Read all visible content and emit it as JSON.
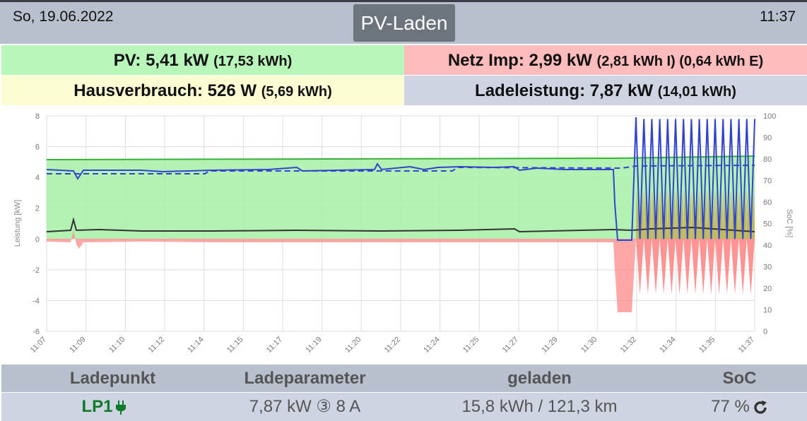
{
  "header": {
    "date": "So, 19.06.2022",
    "mode": "PV-Laden",
    "time": "11:37"
  },
  "tiles": {
    "pv": {
      "label": "PV: 5,41 kW",
      "sub": "(17,53 kWh)"
    },
    "grid": {
      "label": "Netz Imp: 2,99 kW",
      "sub": "(2,81 kWh I) (0,64 kWh E)"
    },
    "house": {
      "label": "Hausverbrauch: 526 W",
      "sub": "(5,69 kWh)"
    },
    "charge": {
      "label": "Ladeleistung: 7,87 kW",
      "sub": "(14,01 kWh)"
    }
  },
  "chart_data": {
    "type": "line",
    "ylabel": "Leistung [kW]",
    "y2label": "SoC [%]",
    "ylim": [
      -6,
      8
    ],
    "y2lim": [
      0,
      100
    ],
    "yticks": [
      "8",
      "6",
      "4",
      "2",
      "0",
      "-2",
      "-4",
      "-6"
    ],
    "y2ticks": [
      "100",
      "90",
      "80",
      "70",
      "60",
      "50",
      "40",
      "30",
      "20",
      "10",
      "0"
    ],
    "xticks": [
      "11:07",
      "11:09",
      "11:10",
      "11:12",
      "11:14",
      "11:15",
      "11:17",
      "11:19",
      "11:20",
      "11:22",
      "11:24",
      "11:25",
      "11:27",
      "11:29",
      "11:30",
      "11:32",
      "11:34",
      "11:35",
      "11:37"
    ],
    "grid": true,
    "series": [
      {
        "color": "#3344cc",
        "points": [
          [
            0,
            4.5
          ],
          [
            2.1,
            4.4
          ],
          [
            2.3,
            4.0
          ],
          [
            2.6,
            4.5
          ],
          [
            7,
            4.5
          ],
          [
            20,
            4.55
          ],
          [
            25,
            4.6
          ],
          [
            26,
            4.9
          ],
          [
            30,
            4.6
          ],
          [
            34,
            4.65
          ],
          [
            38,
            4.7
          ],
          [
            42,
            4.7
          ],
          [
            45,
            4.7
          ],
          [
            50,
            4.6
          ],
          [
            50.5,
            4.0
          ],
          [
            52.5,
            0.0
          ],
          [
            53.5,
            0.1
          ],
          [
            54,
            7.8
          ]
        ]
      },
      {
        "color": "#3344cc",
        "points": [
          [
            0,
            4.2
          ],
          [
            6,
            4.2
          ],
          [
            10,
            4.2
          ],
          [
            14,
            4.2
          ],
          [
            22,
            4.2
          ],
          [
            28,
            4.2
          ],
          [
            28.2,
            4.6
          ],
          [
            35,
            4.6
          ],
          [
            53,
            4.6
          ],
          [
            54,
            4.7
          ],
          [
            60,
            4.7
          ]
        ]
      },
      {
        "color": "#55c055",
        "points": [
          [
            0,
            5.1
          ],
          [
            10,
            5.1
          ],
          [
            20,
            5.15
          ],
          [
            30,
            5.2
          ],
          [
            40,
            5.2
          ],
          [
            50,
            5.2
          ],
          [
            54,
            5.3
          ],
          [
            60,
            5.35
          ]
        ]
      },
      {
        "color": "#333333",
        "points": [
          [
            0,
            0.5
          ],
          [
            2.1,
            0.6
          ],
          [
            2.3,
            1.3
          ],
          [
            2.6,
            0.6
          ],
          [
            10,
            0.6
          ],
          [
            20,
            0.55
          ],
          [
            30,
            0.6
          ],
          [
            40,
            0.6
          ],
          [
            50,
            0.6
          ],
          [
            60,
            0.55
          ]
        ]
      },
      {
        "color": "#e04040",
        "points": [
          [
            0,
            -0.2
          ],
          [
            2.1,
            -0.2
          ],
          [
            2.3,
            0.6
          ],
          [
            2.6,
            -0.7
          ],
          [
            10,
            -0.2
          ],
          [
            20,
            -0.2
          ],
          [
            30,
            -0.2
          ],
          [
            40,
            -0.2
          ],
          [
            50,
            -0.2
          ],
          [
            50.5,
            -1.5
          ],
          [
            51,
            -4.7
          ],
          [
            52,
            -4.7
          ],
          [
            54,
            0.5
          ],
          [
            60,
            -3.6
          ]
        ]
      }
    ]
  },
  "loadpoints": {
    "headers": [
      "Ladepunkt",
      "Ladeparameter",
      "geladen",
      "SoC"
    ],
    "rows": [
      {
        "name": "LP1",
        "params": "7,87 kW ③ 8 A",
        "charged": "15,8 kWh / 121,3 km",
        "soc": "77 %"
      }
    ]
  },
  "colors": {
    "pv": "#b9f6b9",
    "grid": "#ffbcbc",
    "house": "#fdfdd4",
    "charge": "#ced4e2",
    "header": "#b8bfcd",
    "lp_green": "#0d7a2c"
  }
}
